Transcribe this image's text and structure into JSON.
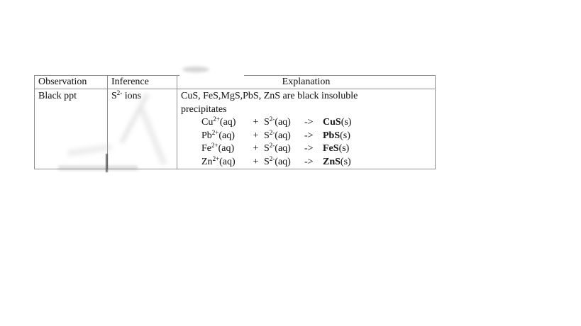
{
  "document": {
    "background": "#ffffff",
    "text_color": "#1f1f1f",
    "border_color": "#8f8f8f"
  },
  "table": {
    "headers": [
      "Observation",
      "Inference",
      "Explanation"
    ],
    "row": {
      "observation": "Black ppt",
      "inference": {
        "element": "S",
        "charge": "2-",
        "suffix": " ions"
      },
      "explanation": {
        "intro_line_1": "CuS, FeS,MgS,PbS, ZnS are black insoluble",
        "intro_line_2": "precipitates",
        "equations": [
          {
            "cation": "Cu",
            "cation_charge": "2+",
            "cation_state": "(aq)",
            "plus": "+",
            "anion": "S",
            "anion_charge": "2-",
            "anion_state": "(aq)",
            "arrow": "->",
            "product": "CuS",
            "product_state": "(s)"
          },
          {
            "cation": "Pb",
            "cation_charge": "2+",
            "cation_state": "(aq)",
            "plus": "+",
            "anion": "S",
            "anion_charge": "2-",
            "anion_state": "(aq)",
            "arrow": "->",
            "product": "PbS",
            "product_state": "(s)"
          },
          {
            "cation": "Fe",
            "cation_charge": "2+",
            "cation_state": "(aq)",
            "plus": "+",
            "anion": "S",
            "anion_charge": "2-",
            "anion_state": "(aq)",
            "arrow": "->",
            "product": "FeS",
            "product_state": "(s)"
          },
          {
            "cation": "Zn",
            "cation_charge": "2+",
            "cation_state": "(aq)",
            "plus": "+",
            "anion": "S",
            "anion_charge": "2-",
            "anion_state": "(aq)",
            "arrow": "->",
            "product": "ZnS",
            "product_state": "(s)"
          }
        ]
      }
    }
  }
}
